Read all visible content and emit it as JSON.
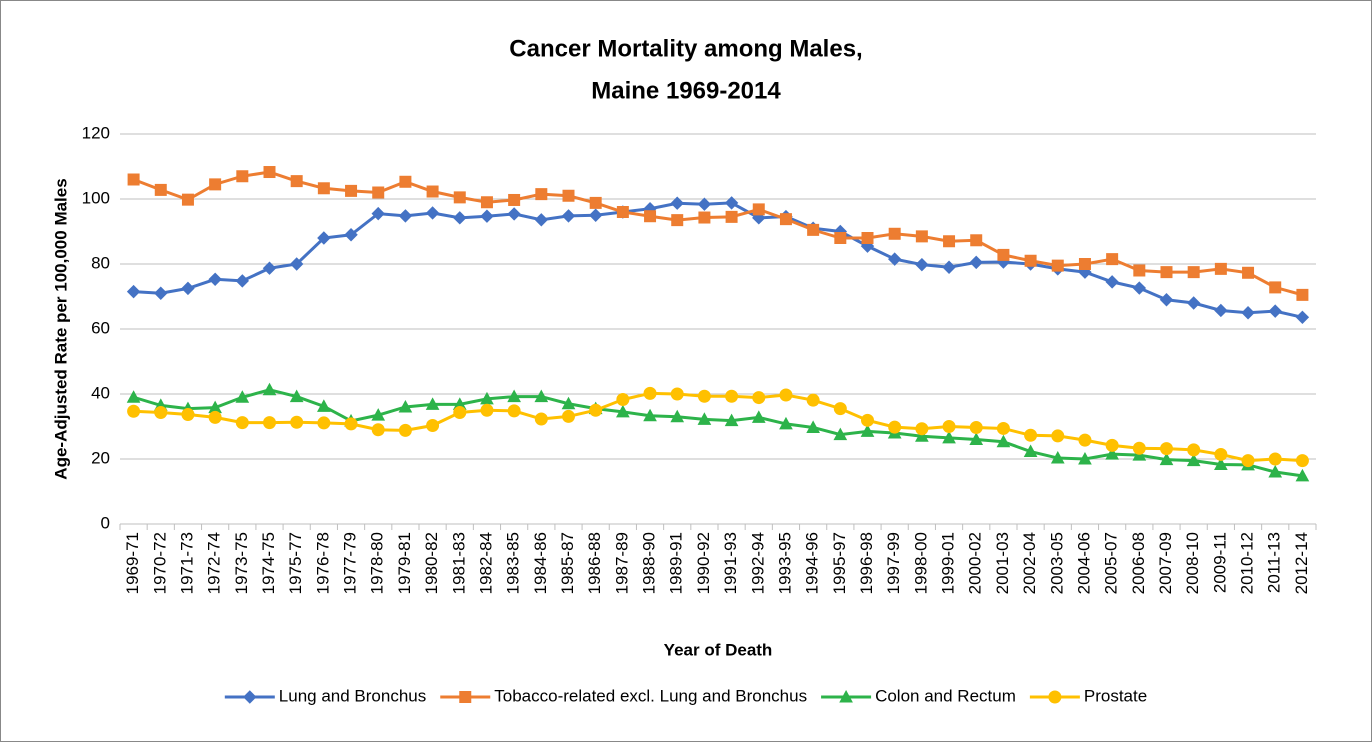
{
  "chart_data": {
    "type": "line",
    "title": [
      "Cancer Mortality among Males,",
      "Maine 1969-2014"
    ],
    "x_label": "Year of Death",
    "y_label": "Age-Adjusted Rate per 100,000 Males",
    "categories": [
      "1969-71",
      "1970-72",
      "1971-73",
      "1972-74",
      "1973-75",
      "1974-75",
      "1975-77",
      "1976-78",
      "1977-79",
      "1978-80",
      "1979-81",
      "1980-82",
      "1981-83",
      "1982-84",
      "1983-85",
      "1984-86",
      "1985-87",
      "1986-88",
      "1987-89",
      "1988-90",
      "1989-91",
      "1990-92",
      "1991-93",
      "1992-94",
      "1993-95",
      "1994-96",
      "1995-97",
      "1996-98",
      "1997-99",
      "1998-00",
      "1999-01",
      "2000-02",
      "2001-03",
      "2002-04",
      "2003-05",
      "2004-06",
      "2005-07",
      "2006-08",
      "2007-09",
      "2008-10",
      "2009-11",
      "2010-12",
      "2011-13",
      "2012-14"
    ],
    "series": [
      {
        "name": "Lung and Bronchus",
        "color": "#4472c4",
        "marker": "diamond",
        "values": [
          71.5,
          71,
          72.5,
          75.3,
          74.8,
          78.7,
          80,
          88,
          89,
          95.5,
          94.8,
          95.7,
          94.2,
          94.7,
          95.4,
          93.6,
          94.8,
          95,
          96,
          97,
          98.7,
          98.4,
          98.8,
          94.2,
          94.6,
          91,
          90,
          85.5,
          81.5,
          79.8,
          79,
          80.5,
          80.6,
          80,
          78.5,
          77.5,
          74.5,
          72.6,
          69,
          68,
          65.7,
          65,
          65.5,
          63.6
        ]
      },
      {
        "name": "Tobacco-related excl. Lung and Bronchus",
        "color": "#ed7d31",
        "marker": "square",
        "values": [
          106,
          102.8,
          99.8,
          104.5,
          107,
          108.3,
          105.5,
          103.3,
          102.5,
          102,
          105.3,
          102.3,
          100.5,
          99,
          99.7,
          101.5,
          101,
          98.8,
          96,
          94.7,
          93.5,
          94.3,
          94.5,
          96.8,
          93.8,
          90.5,
          88,
          88,
          89.3,
          88.5,
          87,
          87.3,
          82.8,
          81,
          79.5,
          80,
          81.5,
          78,
          77.5,
          77.5,
          78.5,
          77.3,
          72.8,
          70.5
        ]
      },
      {
        "name": "Colon and Rectum",
        "color": "#2db34a",
        "marker": "triangle",
        "values": [
          39,
          36.5,
          35.5,
          35.8,
          39,
          41.3,
          39.2,
          36.2,
          31.7,
          33.5,
          36,
          36.8,
          36.8,
          38.5,
          39.2,
          39.2,
          37,
          35.5,
          34.5,
          33.3,
          33,
          32.2,
          31.8,
          32.8,
          30.8,
          29.7,
          27.5,
          28.5,
          28,
          27,
          26.5,
          26,
          25.3,
          22.3,
          20.3,
          20,
          21.5,
          21.2,
          19.8,
          19.5,
          18.3,
          18.2,
          16,
          14.8
        ]
      },
      {
        "name": "Prostate",
        "color": "#ffc000",
        "marker": "circle",
        "values": [
          34.7,
          34.3,
          33.7,
          32.8,
          31.2,
          31.2,
          31.3,
          31.1,
          30.8,
          29,
          28.8,
          30.3,
          34.3,
          35,
          34.8,
          32.3,
          33.1,
          35,
          38.3,
          40.2,
          40,
          39.3,
          39.3,
          38.9,
          39.7,
          38.1,
          35.5,
          31.9,
          29.8,
          29.3,
          30,
          29.7,
          29.4,
          27.3,
          27.1,
          25.8,
          24.2,
          23.3,
          23.2,
          22.8,
          21.4,
          19.5,
          20,
          19.5
        ]
      }
    ],
    "ylim": [
      0,
      120
    ],
    "yticks": [
      0,
      20,
      40,
      60,
      80,
      100,
      120
    ],
    "grid": true,
    "legend": "bottom"
  }
}
